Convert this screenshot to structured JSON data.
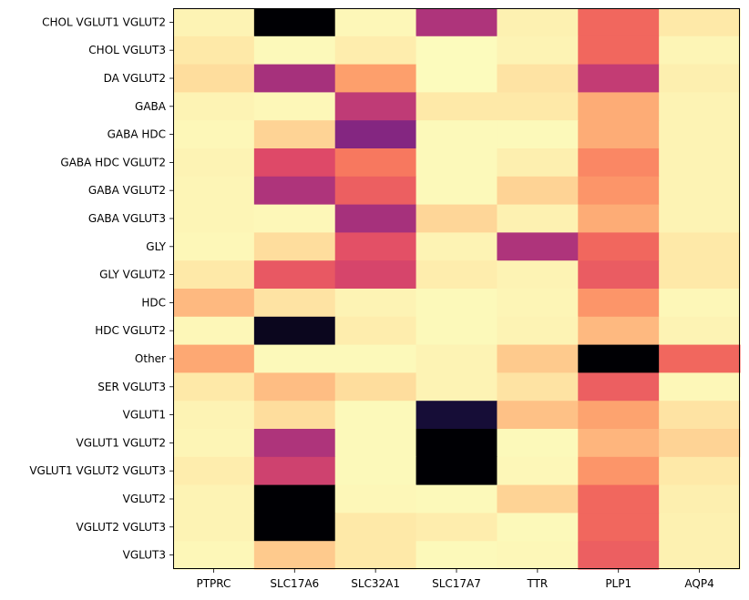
{
  "chart_data": {
    "type": "heatmap",
    "title": "",
    "xlabel": "",
    "ylabel": "",
    "colormap": "magma_r",
    "legend": "none",
    "grid": false,
    "x_categories": [
      "PTPRC",
      "SLC17A6",
      "SLC32A1",
      "SLC17A7",
      "TTR",
      "PLP1",
      "AQP4"
    ],
    "y_categories": [
      "CHOL VGLUT1 VGLUT2",
      "CHOL VGLUT3",
      "DA VGLUT2",
      "GABA",
      "GABA HDC",
      "GABA HDC VGLUT2",
      "GABA VGLUT2",
      "GABA VGLUT3",
      "GLY",
      "GLY VGLUT2",
      "HDC",
      "HDC VGLUT2",
      "Other",
      "SER VGLUT3",
      "VGLUT1",
      "VGLUT1 VGLUT2",
      "VGLUT1 VGLUT2 VGLUT3",
      "VGLUT2",
      "VGLUT2 VGLUT3",
      "VGLUT3"
    ],
    "values_range": [
      0,
      1
    ],
    "values": [
      [
        0.05,
        1.0,
        0.03,
        0.62,
        0.06,
        0.42,
        0.1
      ],
      [
        0.1,
        0.02,
        0.08,
        0.01,
        0.05,
        0.42,
        0.04
      ],
      [
        0.14,
        0.64,
        0.3,
        0.01,
        0.12,
        0.57,
        0.07
      ],
      [
        0.05,
        0.03,
        0.58,
        0.1,
        0.1,
        0.27,
        0.05
      ],
      [
        0.03,
        0.17,
        0.72,
        0.02,
        0.02,
        0.27,
        0.05
      ],
      [
        0.05,
        0.5,
        0.38,
        0.02,
        0.07,
        0.35,
        0.05
      ],
      [
        0.04,
        0.62,
        0.44,
        0.02,
        0.17,
        0.32,
        0.05
      ],
      [
        0.04,
        0.03,
        0.64,
        0.16,
        0.06,
        0.27,
        0.05
      ],
      [
        0.03,
        0.14,
        0.48,
        0.05,
        0.62,
        0.42,
        0.1
      ],
      [
        0.1,
        0.46,
        0.52,
        0.08,
        0.05,
        0.45,
        0.1
      ],
      [
        0.24,
        0.12,
        0.05,
        0.02,
        0.04,
        0.32,
        0.03
      ],
      [
        0.03,
        0.98,
        0.08,
        0.02,
        0.05,
        0.24,
        0.05
      ],
      [
        0.28,
        0.02,
        0.02,
        0.05,
        0.2,
        1.0,
        0.42
      ],
      [
        0.1,
        0.23,
        0.14,
        0.05,
        0.12,
        0.44,
        0.03
      ],
      [
        0.05,
        0.14,
        0.02,
        0.96,
        0.22,
        0.29,
        0.12
      ],
      [
        0.04,
        0.62,
        0.02,
        1.0,
        0.02,
        0.25,
        0.17
      ],
      [
        0.08,
        0.54,
        0.02,
        1.0,
        0.03,
        0.32,
        0.1
      ],
      [
        0.05,
        1.0,
        0.03,
        0.02,
        0.17,
        0.42,
        0.07
      ],
      [
        0.05,
        1.0,
        0.1,
        0.08,
        0.02,
        0.42,
        0.06
      ],
      [
        0.03,
        0.2,
        0.1,
        0.02,
        0.03,
        0.44,
        0.06
      ]
    ]
  }
}
